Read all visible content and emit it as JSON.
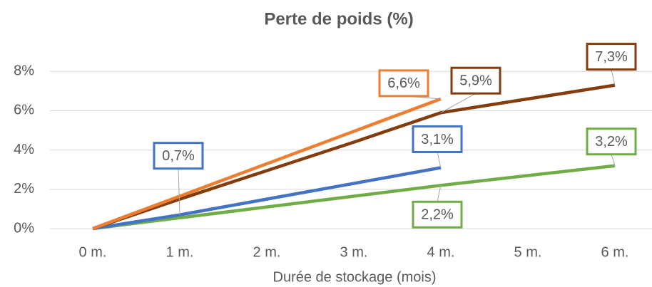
{
  "chart_data": {
    "type": "line",
    "title": "Perte de poids (%)",
    "x_label": "Durée de stockage (mois)",
    "categories": [
      "0 m.",
      "1 m.",
      "2 m.",
      "3 m.",
      "4 m.",
      "5 m.",
      "6 m."
    ],
    "ylim": [
      0,
      8.3
    ],
    "yticks": [
      {
        "value": 0,
        "label": "0%"
      },
      {
        "value": 2,
        "label": "2%"
      },
      {
        "value": 4,
        "label": "4%"
      },
      {
        "value": 6,
        "label": "6%"
      },
      {
        "value": 8,
        "label": "8%"
      }
    ],
    "grid": true,
    "series": [
      {
        "color": "#70ad47",
        "values": [
          0,
          0.55,
          1.1,
          1.65,
          2.2,
          2.7,
          3.2
        ],
        "value_labels": [
          null,
          null,
          null,
          null,
          "2,2%",
          null,
          "3,2%"
        ]
      },
      {
        "color": "#4472c4",
        "values": [
          0,
          0.7,
          1.5,
          2.3,
          3.1,
          null,
          null
        ],
        "value_labels": [
          null,
          "0,7%",
          null,
          null,
          "3,1%",
          null,
          null
        ]
      },
      {
        "color": "#843c0c",
        "values": [
          0,
          1.5,
          2.95,
          4.4,
          5.9,
          6.6,
          7.3
        ],
        "value_labels": [
          null,
          null,
          null,
          null,
          "5,9%",
          null,
          "7,3%"
        ]
      },
      {
        "color": "#ed7d31",
        "values": [
          0,
          1.65,
          3.3,
          4.95,
          6.6,
          null,
          null
        ],
        "value_labels": [
          null,
          null,
          null,
          null,
          "6,6%",
          null,
          null
        ]
      }
    ]
  }
}
